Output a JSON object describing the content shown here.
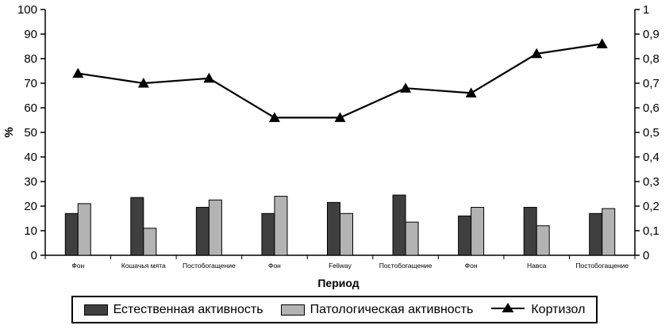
{
  "chart_data": {
    "type": "bar",
    "subtype": "bar+line combo, dual y-axis",
    "categories": [
      "Фон",
      "Кошачья мята",
      "Постобогащение",
      "Фон",
      "Feliway",
      "Постобогащение",
      "Фон",
      "Навса",
      "Постобогащение"
    ],
    "series": [
      {
        "name": "Естественная активность",
        "type": "bar",
        "axis": "left",
        "color": "#3f3f3f",
        "values": [
          17,
          23.5,
          19.5,
          17,
          21.5,
          24.5,
          16,
          19.5,
          17
        ]
      },
      {
        "name": "Патологическая активность",
        "type": "bar",
        "axis": "left",
        "color": "#b3b3b3",
        "values": [
          21,
          11,
          22.5,
          24,
          17,
          13.5,
          19.5,
          12,
          19
        ]
      },
      {
        "name": "Кортизол",
        "type": "line",
        "axis": "right",
        "color": "#000000",
        "values": [
          0.74,
          0.7,
          0.72,
          0.56,
          0.56,
          0.68,
          0.66,
          0.82,
          0.86
        ]
      }
    ],
    "title": "",
    "xlabel": "Период",
    "ylabel_left": "%",
    "left_axis": {
      "min": 0,
      "max": 100,
      "step": 10,
      "tick_labels": [
        "0",
        "10",
        "20",
        "30",
        "40",
        "50",
        "60",
        "70",
        "80",
        "90",
        "100"
      ]
    },
    "right_axis": {
      "min": 0,
      "max": 1,
      "step": 0.1,
      "tick_labels": [
        "0",
        "0,1",
        "0,2",
        "0,3",
        "0,4",
        "0,5",
        "0,6",
        "0,7",
        "0,8",
        "0,9",
        "1"
      ]
    },
    "grid": false,
    "legend_position": "bottom",
    "legend": [
      "Естественная активность",
      "Патологическая активность",
      "Кортизол"
    ]
  }
}
